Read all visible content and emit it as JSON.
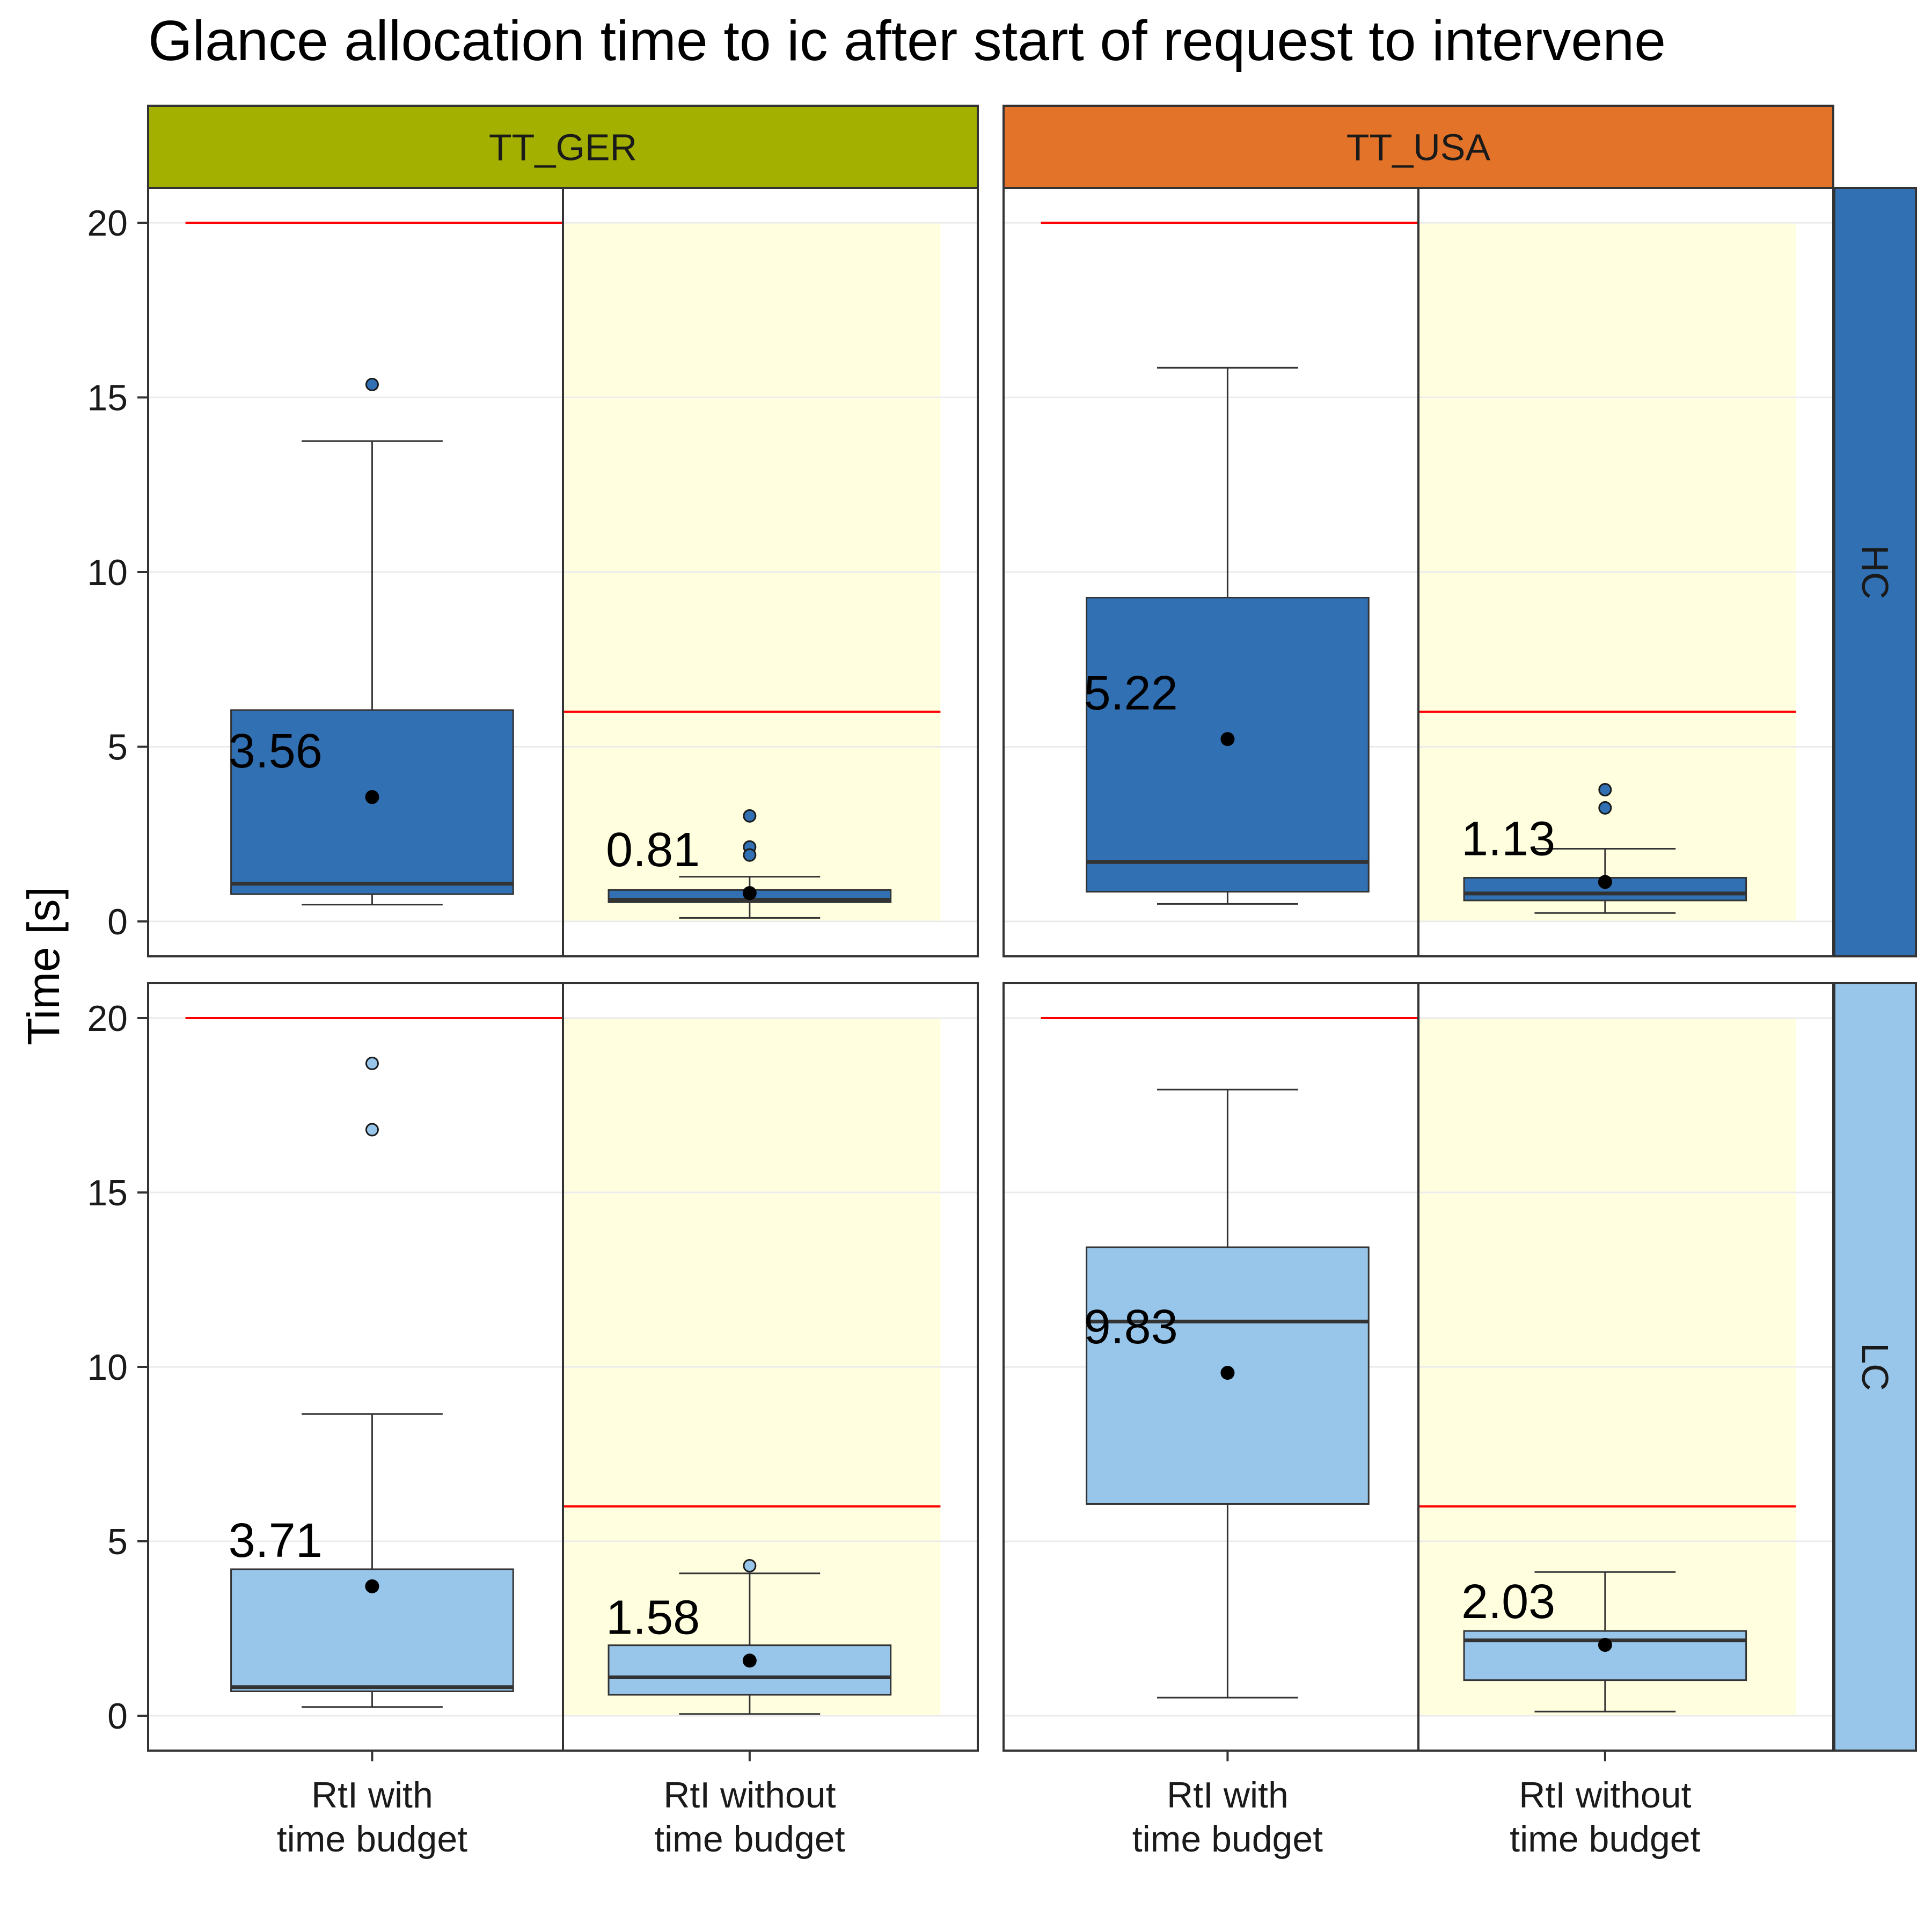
{
  "chart_data": {
    "type": "box",
    "title": "Glance allocation time to ic after start of request to intervene",
    "ylabel": "Time [s]",
    "xlabel": "",
    "ylim": [
      -1,
      21
    ],
    "yticks": [
      0,
      5,
      10,
      15,
      20
    ],
    "grid": true,
    "categories": [
      "RtI with\ntime budget",
      "RtI without\ntime budget"
    ],
    "facet_cols": [
      {
        "label": "TT_GER",
        "color": "#a3b000"
      },
      {
        "label": "TT_USA",
        "color": "#e27328"
      }
    ],
    "facet_rows": [
      {
        "label": "HC",
        "color": "#3070b3"
      },
      {
        "label": "LC",
        "color": "#98c6ea"
      }
    ],
    "box_fill": {
      "HC": "#3070b3",
      "LC": "#98c6ea"
    },
    "highlight_color": "#ffffe0",
    "reference_line_color": "#ff0000",
    "reference_lines": {
      "RtI with\ntime budget": 20,
      "RtI without\ntime budget": 6
    },
    "panels": [
      {
        "col": "TT_GER",
        "row": "HC",
        "boxes": [
          {
            "category": "RtI with\ntime budget",
            "whisker_low": 0.48,
            "q1": 0.78,
            "median": 1.08,
            "q3": 6.05,
            "whisker_high": 13.75,
            "mean": 3.56,
            "mean_label": "3.56",
            "outliers": [
              15.37
            ]
          },
          {
            "category": "RtI without\ntime budget",
            "whisker_low": 0.1,
            "q1": 0.55,
            "median": 0.62,
            "q3": 0.9,
            "whisker_high": 1.28,
            "mean": 0.81,
            "mean_label": "0.81",
            "outliers": [
              3.02,
              2.13,
              1.9
            ]
          }
        ]
      },
      {
        "col": "TT_USA",
        "row": "HC",
        "boxes": [
          {
            "category": "RtI with\ntime budget",
            "whisker_low": 0.5,
            "q1": 0.85,
            "median": 1.7,
            "q3": 9.27,
            "whisker_high": 15.85,
            "mean": 5.22,
            "mean_label": "5.22",
            "outliers": []
          },
          {
            "category": "RtI without\ntime budget",
            "whisker_low": 0.24,
            "q1": 0.6,
            "median": 0.8,
            "q3": 1.25,
            "whisker_high": 2.08,
            "mean": 1.13,
            "mean_label": "1.13",
            "outliers": [
              3.77,
              3.25
            ]
          }
        ]
      },
      {
        "col": "TT_GER",
        "row": "LC",
        "boxes": [
          {
            "category": "RtI with\ntime budget",
            "whisker_low": 0.25,
            "q1": 0.7,
            "median": 0.82,
            "q3": 4.2,
            "whisker_high": 8.65,
            "mean": 3.71,
            "mean_label": "3.71",
            "outliers": [
              16.8,
              18.7
            ]
          },
          {
            "category": "RtI without\ntime budget",
            "whisker_low": 0.05,
            "q1": 0.6,
            "median": 1.1,
            "q3": 2.02,
            "whisker_high": 4.08,
            "mean": 1.58,
            "mean_label": "1.58",
            "outliers": [
              4.3
            ]
          }
        ]
      },
      {
        "col": "TT_USA",
        "row": "LC",
        "boxes": [
          {
            "category": "RtI with\ntime budget",
            "whisker_low": 0.52,
            "q1": 6.07,
            "median": 11.3,
            "q3": 13.43,
            "whisker_high": 17.95,
            "mean": 9.83,
            "mean_label": "9.83",
            "outliers": []
          },
          {
            "category": "RtI without\ntime budget",
            "whisker_low": 0.12,
            "q1": 1.02,
            "median": 2.16,
            "q3": 2.43,
            "whisker_high": 4.12,
            "mean": 2.03,
            "mean_label": "2.03",
            "outliers": []
          }
        ]
      }
    ]
  }
}
